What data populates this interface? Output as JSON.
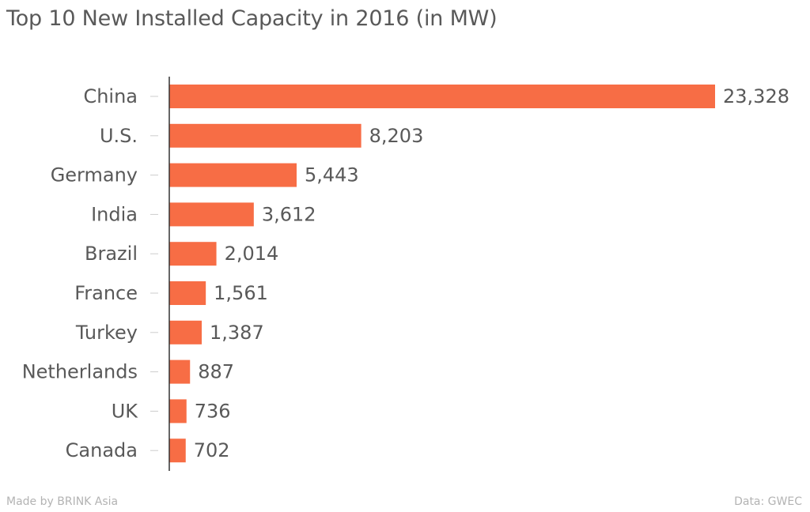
{
  "chart_data": {
    "type": "bar",
    "orientation": "horizontal",
    "title": "Top 10 New Installed Capacity in 2016 (in MW)",
    "xlabel": "",
    "ylabel": "",
    "categories": [
      "China",
      "U.S.",
      "Germany",
      "India",
      "Brazil",
      "France",
      "Turkey",
      "Netherlands",
      "UK",
      "Canada"
    ],
    "values": [
      23328,
      8203,
      5443,
      3612,
      2014,
      1561,
      1387,
      887,
      736,
      702
    ],
    "value_labels": [
      "23,328",
      "8,203",
      "5,443",
      "3,612",
      "2,014",
      "1,561",
      "1,387",
      "887",
      "736",
      "702"
    ],
    "xlim": [
      0,
      23328
    ],
    "grid": false,
    "legend": "none",
    "bar_color": "#f76d45"
  },
  "footer": {
    "credit": "Made by BRINK Asia",
    "source": "Data: GWEC"
  }
}
